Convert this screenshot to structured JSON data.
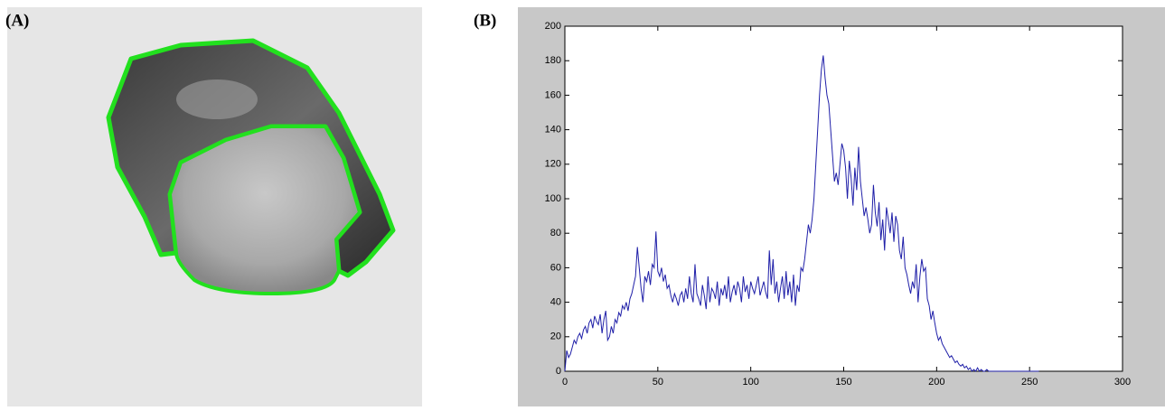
{
  "labels": {
    "a": "(A)",
    "b": "(B)"
  },
  "chart_data": {
    "type": "line",
    "color": "#1f1fa8",
    "x": [
      0,
      1,
      2,
      3,
      4,
      5,
      6,
      7,
      8,
      9,
      10,
      11,
      12,
      13,
      14,
      15,
      16,
      17,
      18,
      19,
      20,
      21,
      22,
      23,
      24,
      25,
      26,
      27,
      28,
      29,
      30,
      31,
      32,
      33,
      34,
      35,
      36,
      37,
      38,
      39,
      40,
      41,
      42,
      43,
      44,
      45,
      46,
      47,
      48,
      49,
      50,
      51,
      52,
      53,
      54,
      55,
      56,
      57,
      58,
      59,
      60,
      61,
      62,
      63,
      64,
      65,
      66,
      67,
      68,
      69,
      70,
      71,
      72,
      73,
      74,
      75,
      76,
      77,
      78,
      79,
      80,
      81,
      82,
      83,
      84,
      85,
      86,
      87,
      88,
      89,
      90,
      91,
      92,
      93,
      94,
      95,
      96,
      97,
      98,
      99,
      100,
      101,
      102,
      103,
      104,
      105,
      106,
      107,
      108,
      109,
      110,
      111,
      112,
      113,
      114,
      115,
      116,
      117,
      118,
      119,
      120,
      121,
      122,
      123,
      124,
      125,
      126,
      127,
      128,
      129,
      130,
      131,
      132,
      133,
      134,
      135,
      136,
      137,
      138,
      139,
      140,
      141,
      142,
      143,
      144,
      145,
      146,
      147,
      148,
      149,
      150,
      151,
      152,
      153,
      154,
      155,
      156,
      157,
      158,
      159,
      160,
      161,
      162,
      163,
      164,
      165,
      166,
      167,
      168,
      169,
      170,
      171,
      172,
      173,
      174,
      175,
      176,
      177,
      178,
      179,
      180,
      181,
      182,
      183,
      184,
      185,
      186,
      187,
      188,
      189,
      190,
      191,
      192,
      193,
      194,
      195,
      196,
      197,
      198,
      199,
      200,
      201,
      202,
      203,
      204,
      205,
      206,
      207,
      208,
      209,
      210,
      211,
      212,
      213,
      214,
      215,
      216,
      217,
      218,
      219,
      220,
      221,
      222,
      223,
      224,
      225,
      226,
      227,
      228,
      229,
      230,
      231,
      232,
      233,
      234,
      235,
      236,
      237,
      238,
      239,
      240,
      241,
      242,
      243,
      244,
      245,
      246,
      247,
      248,
      249,
      250,
      251,
      252,
      253,
      254,
      255
    ],
    "values": [
      0,
      12,
      8,
      10,
      14,
      18,
      16,
      20,
      22,
      19,
      24,
      26,
      22,
      28,
      30,
      25,
      32,
      29,
      27,
      33,
      22,
      30,
      35,
      18,
      20,
      26,
      22,
      30,
      28,
      34,
      32,
      38,
      36,
      40,
      35,
      42,
      45,
      50,
      55,
      72,
      60,
      48,
      40,
      55,
      52,
      58,
      50,
      62,
      60,
      81,
      58,
      55,
      60,
      52,
      56,
      48,
      50,
      44,
      40,
      45,
      42,
      38,
      44,
      46,
      40,
      48,
      42,
      55,
      45,
      40,
      62,
      45,
      42,
      38,
      50,
      44,
      36,
      55,
      40,
      48,
      46,
      42,
      52,
      38,
      48,
      44,
      50,
      42,
      55,
      40,
      46,
      50,
      44,
      52,
      48,
      40,
      55,
      46,
      50,
      42,
      52,
      48,
      45,
      50,
      55,
      44,
      48,
      52,
      46,
      42,
      70,
      50,
      65,
      45,
      52,
      40,
      48,
      55,
      42,
      58,
      44,
      52,
      40,
      56,
      38,
      50,
      46,
      60,
      58,
      65,
      75,
      85,
      80,
      88,
      100,
      120,
      140,
      160,
      175,
      183,
      170,
      160,
      155,
      140,
      125,
      110,
      115,
      108,
      120,
      132,
      128,
      118,
      100,
      122,
      112,
      96,
      118,
      105,
      130,
      110,
      100,
      90,
      95,
      88,
      80,
      85,
      108,
      92,
      84,
      98,
      76,
      88,
      70,
      95,
      88,
      80,
      92,
      75,
      90,
      85,
      70,
      65,
      78,
      60,
      56,
      50,
      45,
      52,
      48,
      62,
      40,
      55,
      65,
      58,
      60,
      42,
      38,
      30,
      35,
      28,
      22,
      18,
      20,
      16,
      14,
      12,
      10,
      8,
      9,
      7,
      5,
      6,
      4,
      3,
      4,
      2,
      3,
      1,
      2,
      0,
      1,
      0,
      2,
      0,
      1,
      0,
      0,
      1,
      0,
      0,
      0,
      0,
      0,
      0,
      0,
      0,
      0,
      0,
      0,
      0,
      0,
      0,
      0,
      0,
      0,
      0,
      0,
      0,
      0,
      0,
      0,
      0,
      0,
      0,
      0,
      0
    ],
    "xlim": [
      0,
      300
    ],
    "xticks": [
      0,
      50,
      100,
      150,
      200,
      250,
      300
    ],
    "ylim": [
      0,
      200
    ],
    "yticks": [
      0,
      20,
      40,
      60,
      80,
      100,
      120,
      140,
      160,
      180,
      200
    ]
  }
}
